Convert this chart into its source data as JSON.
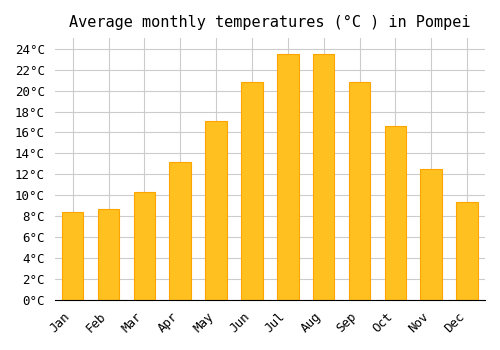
{
  "title": "Average monthly temperatures (°C ) in Pompei",
  "months": [
    "Jan",
    "Feb",
    "Mar",
    "Apr",
    "May",
    "Jun",
    "Jul",
    "Aug",
    "Sep",
    "Oct",
    "Nov",
    "Dec"
  ],
  "temperatures": [
    8.4,
    8.7,
    10.3,
    13.2,
    17.1,
    20.8,
    23.5,
    23.5,
    20.8,
    16.6,
    12.5,
    9.4
  ],
  "bar_color": "#FFC020",
  "bar_edge_color": "#FFA500",
  "background_color": "#FFFFFF",
  "plot_bg_color": "#FFFFFF",
  "grid_color": "#CCCCCC",
  "ylim": [
    0,
    25
  ],
  "yticks": [
    0,
    2,
    4,
    6,
    8,
    10,
    12,
    14,
    16,
    18,
    20,
    22,
    24
  ],
  "title_fontsize": 11,
  "tick_fontsize": 9,
  "font_family": "monospace"
}
